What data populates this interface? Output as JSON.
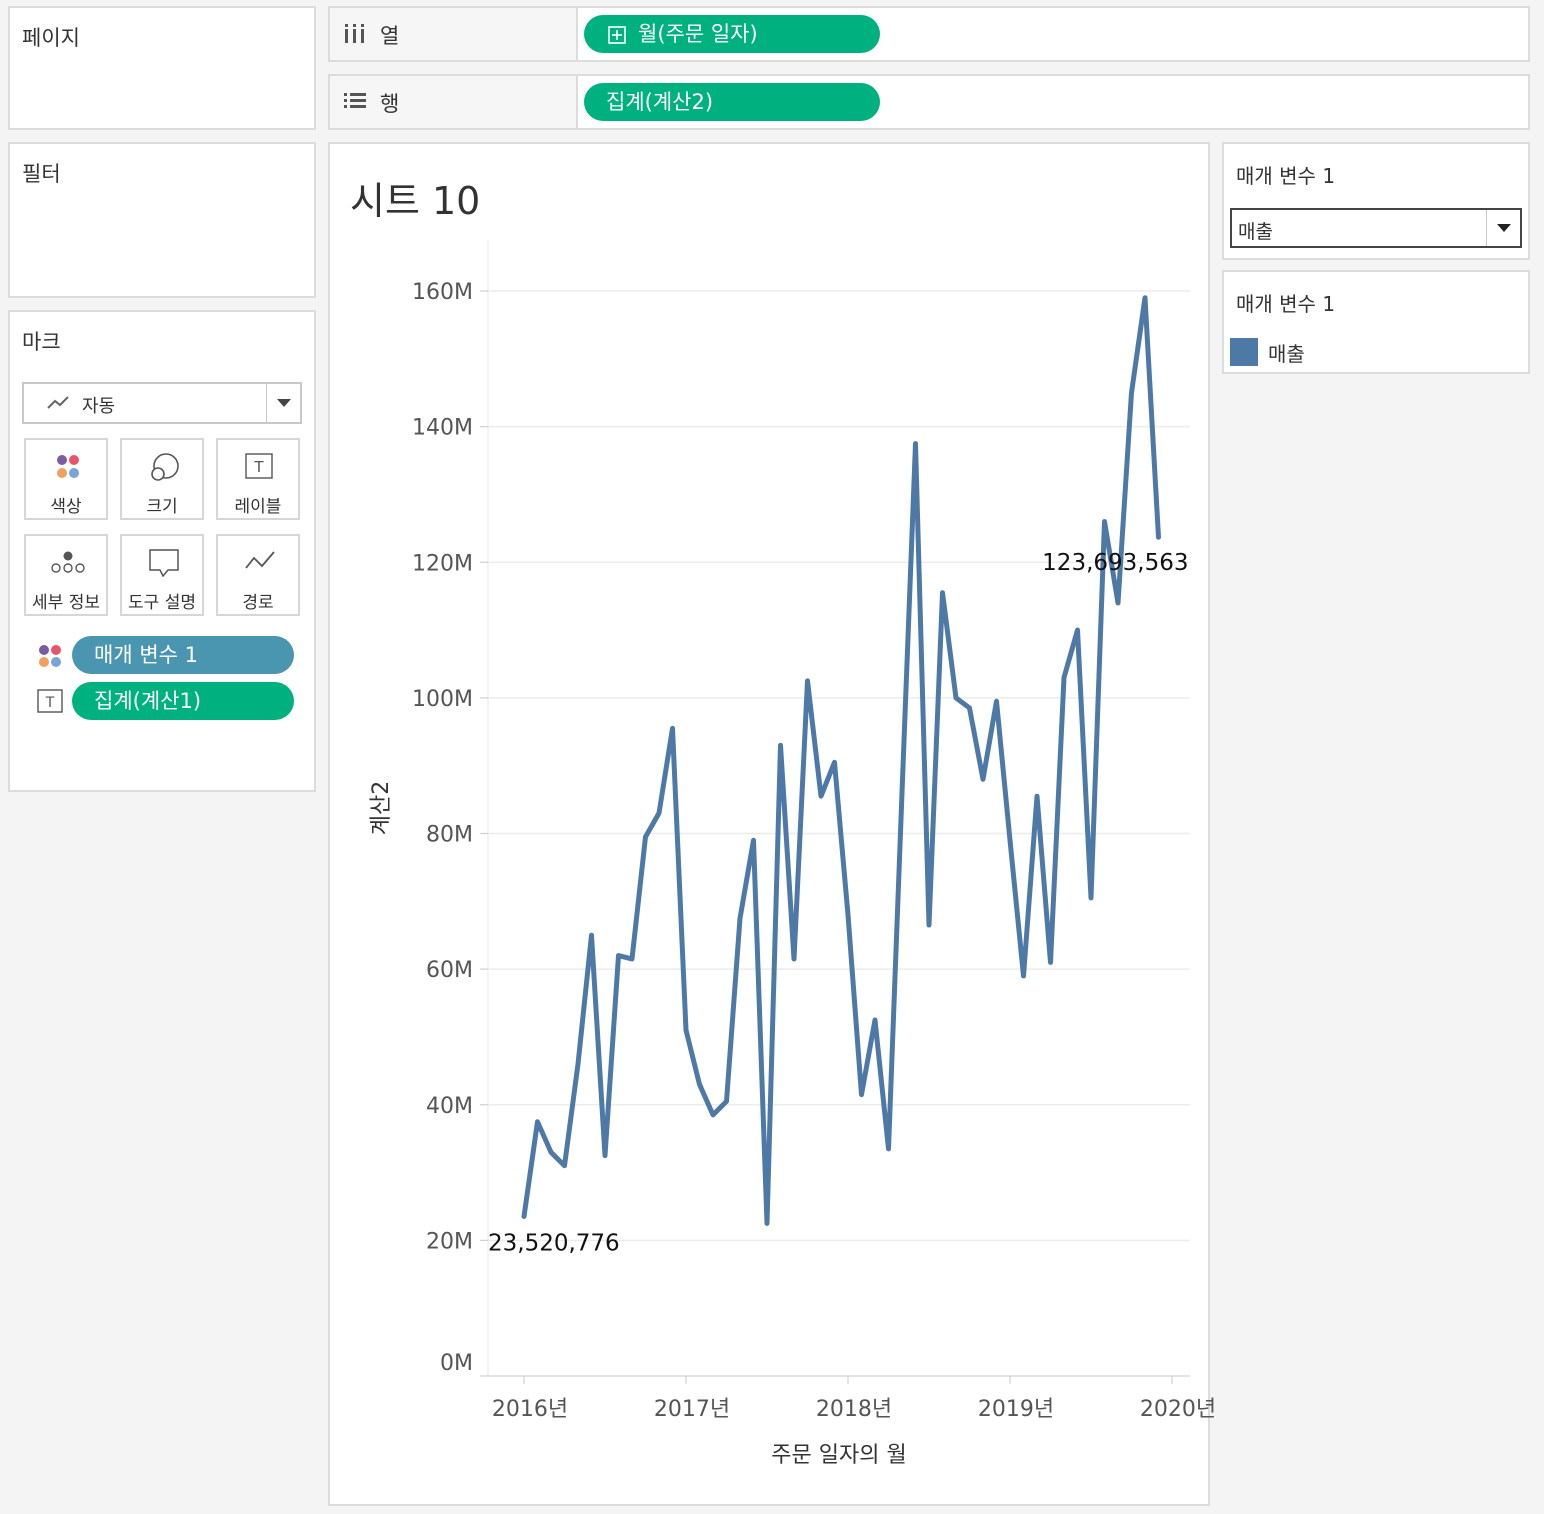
{
  "left": {
    "pages_title": "페이지",
    "filters_title": "필터",
    "marks_title": "마크",
    "mark_type": "자동",
    "mark_cards": [
      {
        "label": "색상",
        "icon": "color-dots-icon"
      },
      {
        "label": "크기",
        "icon": "size-icon"
      },
      {
        "label": "레이블",
        "icon": "text-label-icon"
      },
      {
        "label": "세부 정보",
        "icon": "detail-icon"
      },
      {
        "label": "도구 설명",
        "icon": "tooltip-icon"
      },
      {
        "label": "경로",
        "icon": "path-icon"
      }
    ],
    "mark_pills": [
      {
        "label": "매개 변수 1",
        "icon": "color-dots-icon"
      },
      {
        "label": "집계(계산1)",
        "icon": "text-label-icon"
      }
    ]
  },
  "shelves": {
    "columns_label": "열",
    "columns_pill": "월(주문 일자)",
    "rows_label": "행",
    "rows_pill": "집계(계산2)"
  },
  "sheet": {
    "title": "시트 10"
  },
  "parameter_control": {
    "title": "매개 변수 1",
    "value": "매출"
  },
  "legend": {
    "title": "매개 변수 1",
    "items": [
      {
        "label": "매출",
        "color": "#4e79a7"
      }
    ]
  },
  "colors": {
    "accent_green": "#00b180",
    "accent_blue": "#4a96b0",
    "line": "#4e79a7"
  },
  "chart_data": {
    "type": "line",
    "xlabel": "주문 일자의 월",
    "ylabel": "계산2",
    "x_tick_labels": [
      "2016년",
      "2017년",
      "2018년",
      "2019년",
      "2020년"
    ],
    "y_tick_labels": [
      "0M",
      "20M",
      "40M",
      "60M",
      "80M",
      "100M",
      "120M",
      "140M",
      "160M"
    ],
    "ylim": [
      0,
      160000000
    ],
    "x_start": "2016-01",
    "grid": true,
    "series": [
      {
        "name": "매출",
        "values": [
          23520776,
          37500000,
          33000000,
          31000000,
          46000000,
          65000000,
          32500000,
          62000000,
          61500000,
          79500000,
          83000000,
          95500000,
          51000000,
          43000000,
          38500000,
          40500000,
          67500000,
          79000000,
          22500000,
          93000000,
          61500000,
          102500000,
          85500000,
          90500000,
          68000000,
          41500000,
          52500000,
          33500000,
          86000000,
          137500000,
          66500000,
          115500000,
          100000000,
          98500000,
          88000000,
          99500000,
          79000000,
          59000000,
          85500000,
          61000000,
          103000000,
          110000000,
          70500000,
          126000000,
          114000000,
          145000000,
          159000000,
          123693563
        ]
      }
    ],
    "data_labels": [
      "23,520,776",
      "123,693,563"
    ]
  }
}
